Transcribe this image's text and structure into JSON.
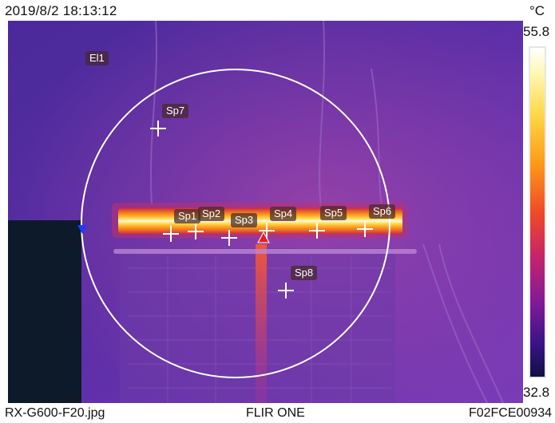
{
  "header": {
    "timestamp": "2019/8/2 18:13:12",
    "unit": "°C"
  },
  "scale": {
    "max": "55.8",
    "min": "32.8",
    "palette": "iron"
  },
  "footer": {
    "filename": "RX-G600-F20.jpg",
    "camera": "FLIR ONE",
    "serial": "F02FCE00934"
  },
  "measurements": {
    "ellipse": {
      "label": "El1",
      "max_marker_color": "#e02020",
      "min_marker_color": "#1a3cff"
    },
    "spots": [
      {
        "label": "Sp1"
      },
      {
        "label": "Sp2"
      },
      {
        "label": "Sp3"
      },
      {
        "label": "Sp4"
      },
      {
        "label": "Sp5"
      },
      {
        "label": "Sp6"
      },
      {
        "label": "Sp7"
      },
      {
        "label": "Sp8"
      }
    ]
  },
  "colors": {
    "background_cold": "#3a1a8a",
    "hot": "#ffd23a",
    "accent_white": "#ffffff"
  }
}
